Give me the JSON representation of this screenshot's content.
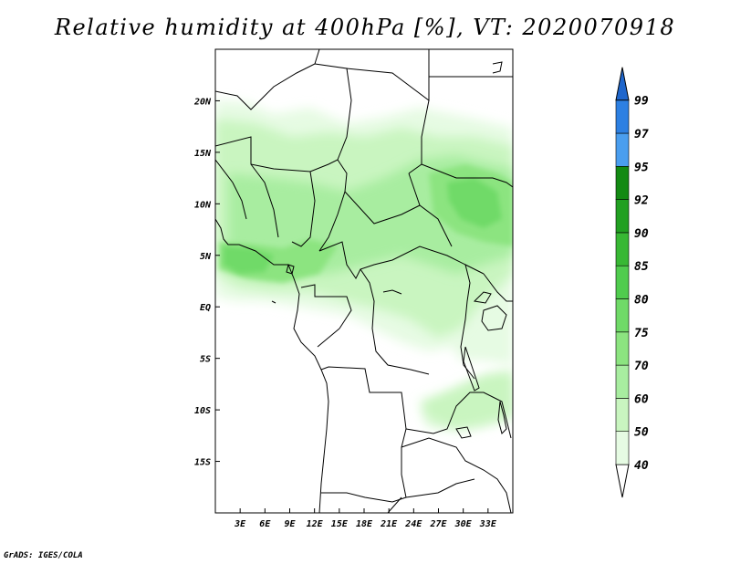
{
  "header": {
    "title": "Relative humidity at 400hPa [%], VT: 2020070918"
  },
  "footer": {
    "credit": "GrADS: IGES/COLA"
  },
  "map": {
    "projection": "latlon",
    "lon_range": [
      0,
      36
    ],
    "lat_range": [
      -20,
      25
    ],
    "x_ticks": [
      "3E",
      "6E",
      "9E",
      "12E",
      "15E",
      "18E",
      "21E",
      "24E",
      "27E",
      "30E",
      "33E"
    ],
    "y_ticks": [
      "20N",
      "15N",
      "10N",
      "5N",
      "EQ",
      "5S",
      "10S",
      "15S"
    ],
    "field": "relative humidity",
    "units": "%"
  },
  "colorbar": {
    "labels": [
      "40",
      "50",
      "60",
      "70",
      "75",
      "80",
      "85",
      "90",
      "92",
      "95",
      "97",
      "99"
    ],
    "colors": [
      "#ffffff",
      "#e6fbe3",
      "#c9f5c0",
      "#a8eda0",
      "#8ce480",
      "#70da68",
      "#50cc4e",
      "#38b834",
      "#22a022",
      "#138a13",
      "#4a9eef",
      "#2d80e2",
      "#1f66cc"
    ]
  }
}
